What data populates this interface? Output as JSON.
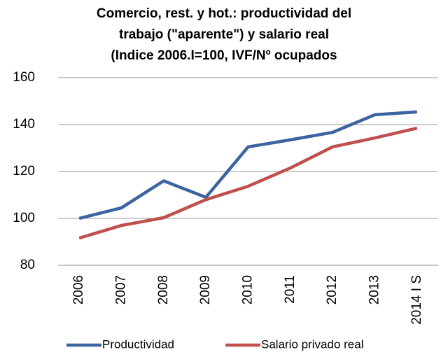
{
  "chart_data": {
    "type": "line",
    "title": [
      "Comercio, rest. y hot.: productividad del",
      "trabajo (\"aparente\") y salario real",
      "(Indice 2006.I=100, IVF/Nº ocupados"
    ],
    "categories": [
      "2006",
      "2007",
      "2008",
      "2009",
      "2010",
      "2011",
      "2012",
      "2013",
      "2014 I S"
    ],
    "series": [
      {
        "name": "Productividad",
        "color": "#3b64a0",
        "values": [
          100,
          104.5,
          116,
          109,
          130.5,
          133.5,
          136.7,
          144.2,
          145.4
        ]
      },
      {
        "name": "Salario privado real",
        "color": "#c0504d",
        "values": [
          91.6,
          97,
          100.3,
          108,
          113.7,
          121.5,
          130.5,
          134.3,
          138.5
        ]
      }
    ],
    "ylim": [
      80,
      160
    ],
    "yticks": [
      80,
      100,
      120,
      140,
      160
    ],
    "grid": true,
    "legend": "bottom"
  }
}
